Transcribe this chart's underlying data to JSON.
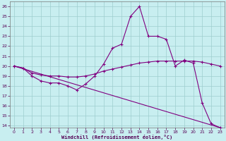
{
  "xlabel": "Windchill (Refroidissement éolien,°C)",
  "background_color": "#c8eef0",
  "line_color": "#800080",
  "grid_color": "#9ecece",
  "xlim": [
    -0.5,
    23.5
  ],
  "ylim": [
    13.8,
    26.5
  ],
  "xticks": [
    0,
    1,
    2,
    3,
    4,
    5,
    6,
    7,
    8,
    9,
    10,
    11,
    12,
    13,
    14,
    15,
    16,
    17,
    18,
    19,
    20,
    21,
    22,
    23
  ],
  "yticks": [
    14,
    15,
    16,
    17,
    18,
    19,
    20,
    21,
    22,
    23,
    24,
    25,
    26
  ],
  "line1_x": [
    0,
    1,
    2,
    3,
    4,
    5,
    6,
    7,
    8,
    9,
    10,
    11,
    12,
    13,
    14,
    15,
    16,
    17,
    18,
    19,
    20,
    21,
    22,
    23
  ],
  "line1_y": [
    20.0,
    19.8,
    19.0,
    18.5,
    18.3,
    18.3,
    18.0,
    17.6,
    18.2,
    19.0,
    20.2,
    21.8,
    22.2,
    25.0,
    26.0,
    23.0,
    23.0,
    22.7,
    20.0,
    20.6,
    20.3,
    16.3,
    14.2,
    13.8
  ],
  "line2_x": [
    0,
    1,
    2,
    3,
    4,
    5,
    6,
    7,
    8,
    9,
    10,
    11,
    12,
    13,
    14,
    15,
    16,
    17,
    18,
    19,
    20,
    21,
    22,
    23
  ],
  "line2_y": [
    20.0,
    19.8,
    19.3,
    19.1,
    19.0,
    19.0,
    18.9,
    18.9,
    19.0,
    19.2,
    19.5,
    19.7,
    19.9,
    20.1,
    20.3,
    20.4,
    20.5,
    20.5,
    20.5,
    20.5,
    20.5,
    20.4,
    20.2,
    20.0
  ],
  "line3_x": [
    0,
    23
  ],
  "line3_y": [
    20.0,
    13.8
  ]
}
